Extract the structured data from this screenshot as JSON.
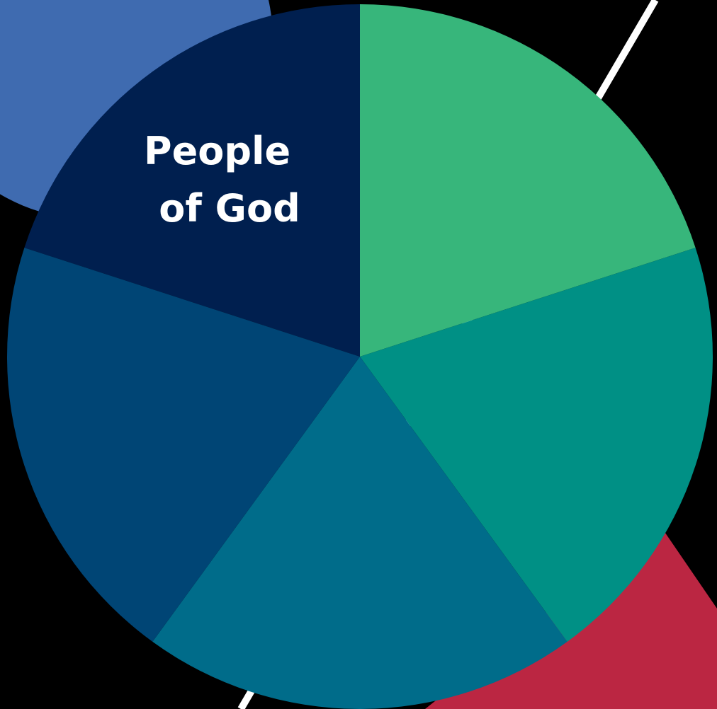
{
  "segments": [
    {
      "id": "top-left",
      "label_lines": [
        "People",
        "of God"
      ],
      "color": "#001f4f"
    },
    {
      "id": "top-right",
      "label_lines": [],
      "color": "#37b67b"
    },
    {
      "id": "right",
      "label_lines": [],
      "color": "#009085"
    },
    {
      "id": "bottom",
      "label_lines": [],
      "color": "#006c8a"
    },
    {
      "id": "left",
      "label_lines": [],
      "color": "#004575"
    }
  ],
  "decor": {
    "background_color": "#000000",
    "blue_circle_color": "#3f6bb0",
    "red_triangle_color": "#bb2642",
    "diagonal_line_color": "#ffffff"
  }
}
